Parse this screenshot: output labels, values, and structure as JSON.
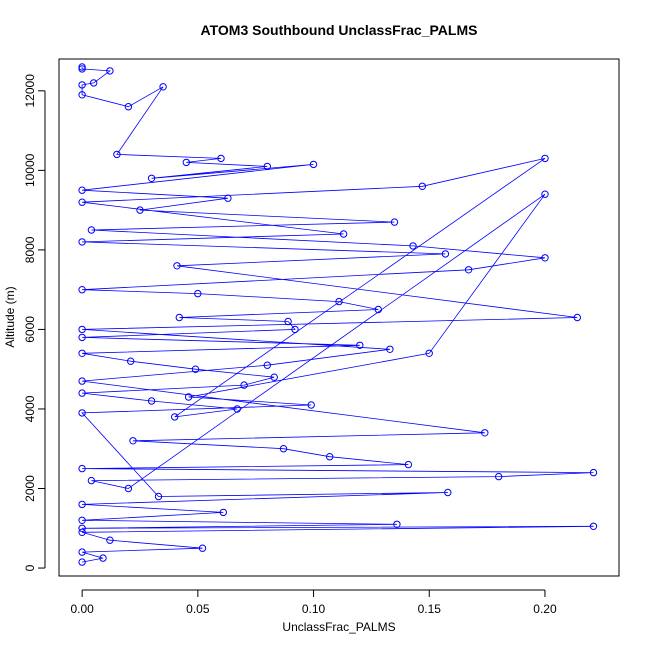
{
  "chart_data": {
    "type": "scatter",
    "title": "ATOM3 Southbound UnclassFrac_PALMS",
    "xlabel": "UnclassFrac_PALMS",
    "ylabel": "Altitude (m)",
    "xlim": [
      -0.01,
      0.232
    ],
    "ylim": [
      -200,
      12800
    ],
    "x_ticks": [
      0.0,
      0.05,
      0.1,
      0.15,
      0.2
    ],
    "x_tick_labels": [
      "0.00",
      "0.05",
      "0.10",
      "0.15",
      "0.20"
    ],
    "y_ticks": [
      0,
      2000,
      4000,
      6000,
      8000,
      10000,
      12000
    ],
    "y_tick_labels": [
      "0",
      "2000",
      "4000",
      "6000",
      "8000",
      "10000",
      "12000"
    ],
    "grid": false,
    "marker": "open-circle",
    "connected_by_lines": true,
    "series_color": "#0000ff",
    "series": [
      {
        "x": [
          0.0,
          0.0,
          0.012,
          0.005,
          0.0,
          0.0,
          0.02,
          0.035,
          0.015,
          0.06,
          0.045,
          0.08,
          0.03,
          0.1,
          0.0,
          0.063,
          0.025,
          0.135,
          0.004,
          0.143,
          0.2,
          0.167,
          0.0,
          0.05,
          0.111,
          0.128,
          0.042,
          0.089,
          0.092,
          0.0,
          0.12,
          0.0,
          0.021,
          0.049,
          0.083,
          0.07,
          0.0,
          0.03,
          0.067,
          0.04,
          0.2,
          0.147,
          0.0,
          0.113,
          0.0,
          0.157,
          0.041,
          0.214,
          0.0,
          0.133,
          0.08,
          0.0,
          0.174,
          0.022,
          0.087,
          0.107,
          0.141,
          0.0,
          0.221,
          0.18,
          0.004,
          0.02,
          0.2,
          0.15,
          0.046,
          0.099,
          0.0,
          0.033,
          0.158,
          0.0,
          0.061,
          0.0,
          0.136,
          0.0,
          0.221,
          0.0,
          0.012,
          0.052,
          0.0,
          0.009,
          0.0
        ],
        "y": [
          12600,
          12550,
          12500,
          12200,
          12150,
          11900,
          11600,
          12100,
          10400,
          10300,
          10200,
          10100,
          9800,
          10150,
          9500,
          9300,
          9000,
          8700,
          8500,
          8100,
          7800,
          7500,
          7000,
          6900,
          6700,
          6500,
          6300,
          6200,
          6000,
          5800,
          5600,
          5400,
          5200,
          5000,
          4800,
          4600,
          4400,
          4200,
          4000,
          3800,
          10300,
          9600,
          9200,
          8400,
          8200,
          7900,
          7600,
          6300,
          6000,
          5500,
          5100,
          4700,
          3400,
          3200,
          3000,
          2800,
          2600,
          2500,
          2400,
          2300,
          2200,
          2000,
          9400,
          5400,
          4300,
          4100,
          3900,
          1800,
          1900,
          1600,
          1400,
          1200,
          1100,
          1000,
          1050,
          900,
          700,
          500,
          400,
          250,
          150
        ]
      }
    ]
  }
}
